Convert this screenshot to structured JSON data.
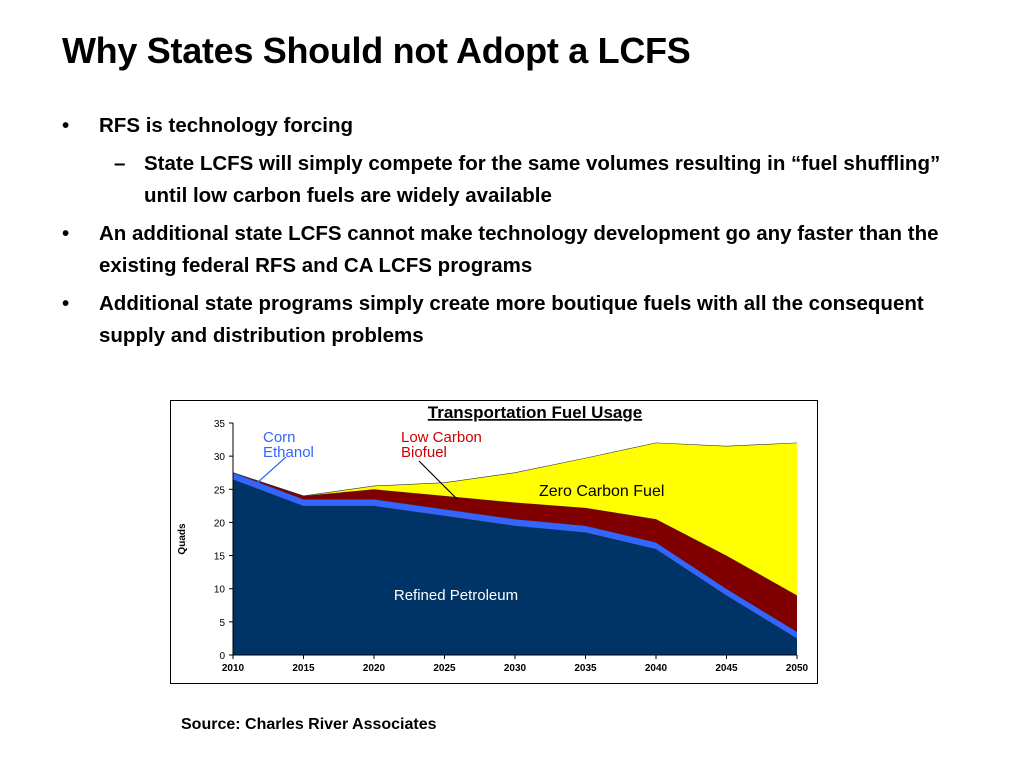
{
  "slide": {
    "title": "Why States Should not Adopt a LCFS",
    "bullets": [
      {
        "mark": "•",
        "text": "RFS is technology forcing"
      },
      {
        "mark": "–",
        "text": "State LCFS will simply compete for the same volumes resulting in “fuel shuffling” until low carbon fuels are widely available"
      },
      {
        "mark": "•",
        "text": "An additional state LCFS cannot make technology development go any faster than the existing federal RFS and CA LCFS programs"
      },
      {
        "mark": "•",
        "text": "Additional state programs simply create more boutique fuels with all the consequent supply and distribution problems"
      }
    ],
    "source": "Source: Charles River Associates"
  },
  "chart_data": {
    "type": "area",
    "title": "Transportation Fuel Usage",
    "xlabel": "",
    "ylabel": "Quads",
    "x": [
      2010,
      2015,
      2020,
      2025,
      2030,
      2035,
      2040,
      2045,
      2050
    ],
    "ylim": [
      0,
      35
    ],
    "yticks": [
      0,
      5,
      10,
      15,
      20,
      25,
      30,
      35
    ],
    "stacked": true,
    "series": [
      {
        "name": "Refined Petroleum",
        "color": "#003366",
        "values": [
          26.5,
          22.5,
          22.5,
          21.0,
          19.5,
          18.5,
          16.0,
          9.0,
          2.5
        ]
      },
      {
        "name": "Corn Ethanol",
        "color": "#3366ff",
        "values": [
          1.0,
          1.0,
          1.0,
          1.0,
          1.0,
          1.0,
          1.0,
          1.0,
          1.0
        ]
      },
      {
        "name": "Low Carbon Biofuel",
        "color": "#800000",
        "values": [
          0,
          0.5,
          1.5,
          2.0,
          2.5,
          2.7,
          3.5,
          5.0,
          5.5
        ]
      },
      {
        "name": "Zero Carbon Fuel",
        "color": "#ffff00",
        "values": [
          0,
          0,
          0.5,
          2.0,
          4.5,
          7.5,
          11.5,
          16.5,
          23.0
        ]
      }
    ],
    "annotations": [
      {
        "text": [
          "Corn",
          "Ethanol"
        ],
        "color": "#3366ff"
      },
      {
        "text": [
          "Low Carbon",
          "Biofuel"
        ],
        "color": "#cc0000"
      },
      {
        "text": [
          "Zero Carbon Fuel"
        ],
        "color": "#000000"
      },
      {
        "text": [
          "Refined Petroleum"
        ],
        "color": "#ffffff"
      }
    ],
    "grid": false,
    "legend": "none"
  }
}
